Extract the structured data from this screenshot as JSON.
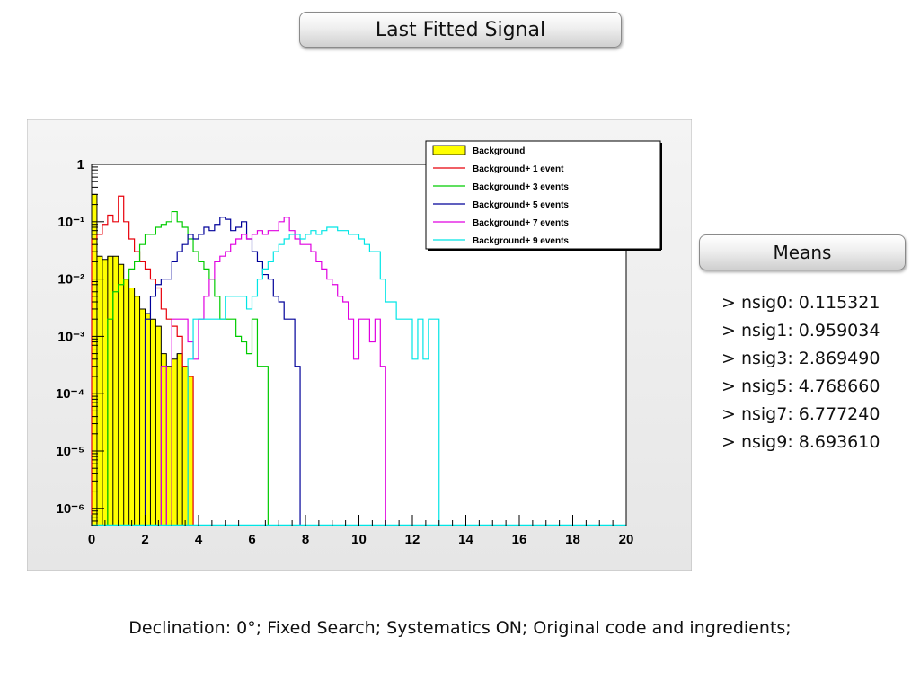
{
  "header": {
    "title": "Last Fitted Signal"
  },
  "means": {
    "title": "Means",
    "items": [
      "> nsig0: 0.115321",
      "> nsig1: 0.959034",
      "> nsig3: 2.869490",
      "> nsig5: 4.768660",
      "> nsig7: 6.777240",
      "> nsig9: 8.693610"
    ]
  },
  "caption": "Declination: 0°; Fixed Search; Systematics ON; Original code and ingredients;",
  "colors": {
    "background_fill": "#ffff00",
    "evt1": "#e8000b",
    "evt3": "#00cc00",
    "evt5": "#000099",
    "evt7": "#e000e0",
    "evt9": "#00e5e5"
  },
  "chart_data": {
    "type": "histogram",
    "y_scale": "log",
    "xlim": [
      0,
      20
    ],
    "ylim": [
      5e-07,
      1
    ],
    "bin_width": 0.2,
    "grid": false,
    "legend_position": "top-right",
    "x_ticks": [
      "0",
      "2",
      "4",
      "6",
      "8",
      "10",
      "12",
      "14",
      "16",
      "18",
      "20"
    ],
    "y_ticks": [
      {
        "label": "1",
        "value": 1
      },
      {
        "label": "10⁻¹",
        "value": 0.1
      },
      {
        "label": "10⁻²",
        "value": 0.01
      },
      {
        "label": "10⁻³",
        "value": 0.001
      },
      {
        "label": "10⁻⁴",
        "value": 0.0001
      },
      {
        "label": "10⁻⁵",
        "value": 1e-05
      },
      {
        "label": "10⁻⁶",
        "value": 1e-06
      }
    ],
    "series": [
      {
        "name": "Background",
        "color_key": "background_fill",
        "filled": true,
        "bins": [
          [
            0.0,
            0.3
          ],
          [
            0.2,
            0.025
          ],
          [
            0.4,
            0.022
          ],
          [
            0.6,
            0.025
          ],
          [
            0.8,
            0.025
          ],
          [
            1.0,
            0.018
          ],
          [
            1.2,
            0.01
          ],
          [
            1.4,
            0.007
          ],
          [
            1.6,
            0.005
          ],
          [
            1.8,
            0.003
          ],
          [
            2.0,
            0.0025
          ],
          [
            2.2,
            0.002
          ],
          [
            2.4,
            0.0015
          ],
          [
            2.6,
            0.0005
          ],
          [
            2.8,
            0.0003
          ],
          [
            3.0,
            0.0004
          ],
          [
            3.2,
            0.0005
          ],
          [
            3.4,
            0.0003
          ],
          [
            3.6,
            0.0002
          ]
        ]
      },
      {
        "name": "Background+ 1 event",
        "color_key": "evt1",
        "bins": [
          [
            0.0,
            0.05
          ],
          [
            0.2,
            0.06
          ],
          [
            0.4,
            0.09
          ],
          [
            0.6,
            0.13
          ],
          [
            0.8,
            0.1
          ],
          [
            1.0,
            0.28
          ],
          [
            1.2,
            0.1
          ],
          [
            1.4,
            0.05
          ],
          [
            1.6,
            0.03
          ],
          [
            1.8,
            0.02
          ],
          [
            2.0,
            0.015
          ],
          [
            2.2,
            0.01
          ],
          [
            2.4,
            0.007
          ],
          [
            2.6,
            0.003
          ],
          [
            2.8,
            0.002
          ],
          [
            3.0,
            0.0015
          ],
          [
            3.2,
            0.001
          ],
          [
            3.4,
            0.0003
          ],
          [
            3.6,
            0.0002
          ]
        ]
      },
      {
        "name": "Background+ 3 events",
        "color_key": "evt3",
        "bins": [
          [
            0.6,
            0.002
          ],
          [
            0.8,
            0.006
          ],
          [
            1.0,
            0.008
          ],
          [
            1.2,
            0.01
          ],
          [
            1.4,
            0.015
          ],
          [
            1.6,
            0.02
          ],
          [
            1.8,
            0.04
          ],
          [
            2.0,
            0.06
          ],
          [
            2.2,
            0.06
          ],
          [
            2.4,
            0.08
          ],
          [
            2.6,
            0.09
          ],
          [
            2.8,
            0.1
          ],
          [
            3.0,
            0.15
          ],
          [
            3.2,
            0.1
          ],
          [
            3.4,
            0.08
          ],
          [
            3.6,
            0.05
          ],
          [
            3.8,
            0.03
          ],
          [
            4.0,
            0.02
          ],
          [
            4.2,
            0.015
          ],
          [
            4.4,
            0.01
          ],
          [
            4.6,
            0.005
          ],
          [
            4.8,
            0.002
          ],
          [
            5.0,
            0.002
          ],
          [
            5.2,
            0.002
          ],
          [
            5.4,
            0.001
          ],
          [
            5.6,
            0.0008
          ],
          [
            5.8,
            0.0005
          ],
          [
            6.0,
            0.002
          ],
          [
            6.2,
            0.0003
          ],
          [
            6.4,
            0.0003
          ]
        ]
      },
      {
        "name": "Background+ 5 events",
        "color_key": "evt5",
        "bins": [
          [
            2.0,
            0.002
          ],
          [
            2.2,
            0.005
          ],
          [
            2.4,
            0.008
          ],
          [
            2.6,
            0.01
          ],
          [
            2.8,
            0.01
          ],
          [
            3.0,
            0.02
          ],
          [
            3.2,
            0.03
          ],
          [
            3.4,
            0.04
          ],
          [
            3.6,
            0.06
          ],
          [
            3.8,
            0.05
          ],
          [
            4.0,
            0.06
          ],
          [
            4.2,
            0.08
          ],
          [
            4.4,
            0.07
          ],
          [
            4.6,
            0.09
          ],
          [
            4.8,
            0.12
          ],
          [
            5.0,
            0.11
          ],
          [
            5.2,
            0.07
          ],
          [
            5.4,
            0.08
          ],
          [
            5.6,
            0.1
          ],
          [
            5.8,
            0.05
          ],
          [
            6.0,
            0.03
          ],
          [
            6.2,
            0.02
          ],
          [
            6.4,
            0.012
          ],
          [
            6.6,
            0.01
          ],
          [
            6.8,
            0.005
          ],
          [
            7.0,
            0.004
          ],
          [
            7.2,
            0.002
          ],
          [
            7.4,
            0.002
          ],
          [
            7.6,
            0.0003
          ]
        ]
      },
      {
        "name": "Background+ 7 events",
        "color_key": "evt7",
        "bins": [
          [
            2.6,
            0.0003
          ],
          [
            3.0,
            0.002
          ],
          [
            3.2,
            0.002
          ],
          [
            3.4,
            0.002
          ],
          [
            3.6,
            0.0008
          ],
          [
            3.8,
            0.0004
          ],
          [
            4.0,
            0.002
          ],
          [
            4.2,
            0.005
          ],
          [
            4.4,
            0.01
          ],
          [
            4.6,
            0.02
          ],
          [
            4.8,
            0.025
          ],
          [
            5.0,
            0.03
          ],
          [
            5.2,
            0.04
          ],
          [
            5.4,
            0.05
          ],
          [
            5.6,
            0.06
          ],
          [
            5.8,
            0.05
          ],
          [
            6.0,
            0.06
          ],
          [
            6.2,
            0.07
          ],
          [
            6.4,
            0.06
          ],
          [
            6.6,
            0.07
          ],
          [
            6.8,
            0.07
          ],
          [
            7.0,
            0.1
          ],
          [
            7.2,
            0.12
          ],
          [
            7.4,
            0.07
          ],
          [
            7.6,
            0.05
          ],
          [
            7.8,
            0.04
          ],
          [
            8.0,
            0.04
          ],
          [
            8.2,
            0.03
          ],
          [
            8.4,
            0.02
          ],
          [
            8.6,
            0.015
          ],
          [
            8.8,
            0.01
          ],
          [
            9.0,
            0.008
          ],
          [
            9.2,
            0.005
          ],
          [
            9.4,
            0.004
          ],
          [
            9.6,
            0.002
          ],
          [
            9.8,
            0.0004
          ],
          [
            10.0,
            0.002
          ],
          [
            10.2,
            0.002
          ],
          [
            10.4,
            0.0008
          ],
          [
            10.6,
            0.002
          ],
          [
            10.8,
            0.0003
          ]
        ]
      },
      {
        "name": "Background+ 9 events",
        "color_key": "evt9",
        "bins": [
          [
            3.6,
            0.0004
          ],
          [
            3.8,
            0.002
          ],
          [
            4.0,
            0.002
          ],
          [
            4.2,
            0.002
          ],
          [
            4.4,
            0.002
          ],
          [
            4.6,
            0.002
          ],
          [
            4.8,
            0.002
          ],
          [
            5.0,
            0.005
          ],
          [
            5.2,
            0.005
          ],
          [
            5.4,
            0.005
          ],
          [
            5.6,
            0.005
          ],
          [
            5.8,
            0.003
          ],
          [
            6.0,
            0.005
          ],
          [
            6.2,
            0.01
          ],
          [
            6.4,
            0.015
          ],
          [
            6.6,
            0.02
          ],
          [
            6.8,
            0.03
          ],
          [
            7.0,
            0.04
          ],
          [
            7.2,
            0.05
          ],
          [
            7.4,
            0.06
          ],
          [
            7.6,
            0.06
          ],
          [
            7.8,
            0.05
          ],
          [
            8.0,
            0.06
          ],
          [
            8.2,
            0.07
          ],
          [
            8.4,
            0.06
          ],
          [
            8.6,
            0.07
          ],
          [
            8.8,
            0.08
          ],
          [
            9.0,
            0.08
          ],
          [
            9.2,
            0.07
          ],
          [
            9.4,
            0.07
          ],
          [
            9.6,
            0.06
          ],
          [
            9.8,
            0.06
          ],
          [
            10.0,
            0.05
          ],
          [
            10.2,
            0.04
          ],
          [
            10.4,
            0.03
          ],
          [
            10.6,
            0.03
          ],
          [
            10.8,
            0.01
          ],
          [
            11.0,
            0.004
          ],
          [
            11.2,
            0.004
          ],
          [
            11.4,
            0.002
          ],
          [
            11.6,
            0.002
          ],
          [
            11.8,
            0.002
          ],
          [
            12.0,
            0.0004
          ],
          [
            12.2,
            0.002
          ],
          [
            12.4,
            0.0004
          ],
          [
            12.6,
            0.002
          ],
          [
            12.8,
            0.002
          ]
        ]
      }
    ]
  }
}
